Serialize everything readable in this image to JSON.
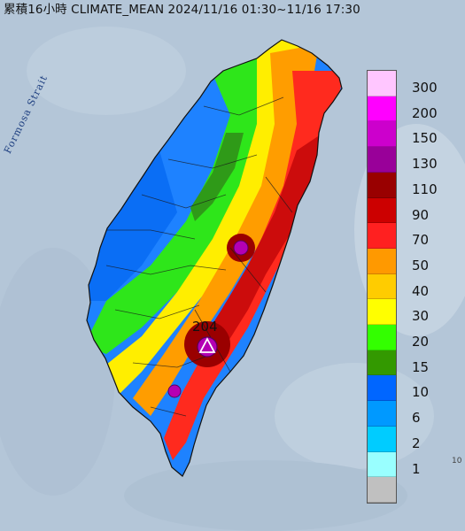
{
  "header": {
    "title": "累積16小時 CLIMATE_MEAN 2024/11/16 01:30~11/16 17:30"
  },
  "map": {
    "strait_label": "Formosa Strait",
    "max_station_value": "204",
    "edge_label": "10"
  },
  "legend": {
    "items": [
      {
        "label": "300",
        "color": "#ffc6ff"
      },
      {
        "label": "200",
        "color": "#ff00ff"
      },
      {
        "label": "150",
        "color": "#cc00cc"
      },
      {
        "label": "130",
        "color": "#990099"
      },
      {
        "label": "110",
        "color": "#990000"
      },
      {
        "label": "90",
        "color": "#cc0000"
      },
      {
        "label": "70",
        "color": "#ff2020"
      },
      {
        "label": "50",
        "color": "#ff9900"
      },
      {
        "label": "40",
        "color": "#ffcc00"
      },
      {
        "label": "30",
        "color": "#ffff00"
      },
      {
        "label": "20",
        "color": "#33ff00"
      },
      {
        "label": "15",
        "color": "#339900"
      },
      {
        "label": "10",
        "color": "#0066ff"
      },
      {
        "label": "6",
        "color": "#0099ff"
      },
      {
        "label": "2",
        "color": "#00ccff"
      },
      {
        "label": "1",
        "color": "#99ffff"
      },
      {
        "label": "",
        "color": "#c0c0c0"
      }
    ]
  }
}
